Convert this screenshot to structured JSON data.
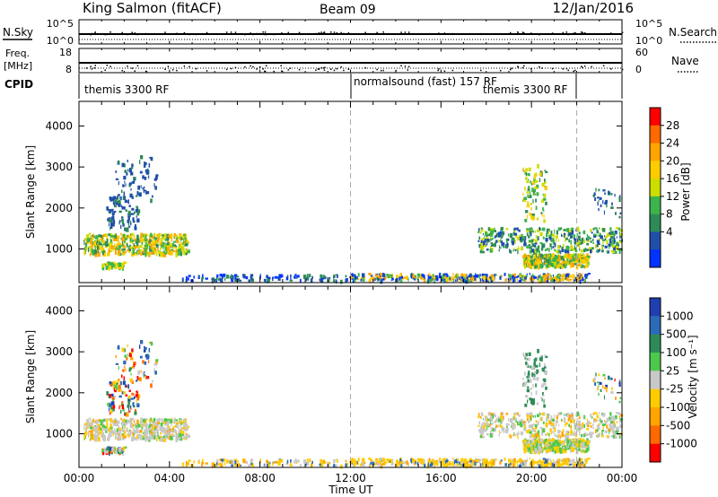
{
  "header": {
    "station": "King Salmon (fitACF)",
    "beam": "Beam 09",
    "date": "12/Jan/2016"
  },
  "aux_panels": {
    "nsky_label": "N.Sky",
    "nsky_ticks": [
      "10^5",
      "10^0"
    ],
    "nsearch_label": "N.Search",
    "nsearch_ticks": [
      "10^5",
      "10^0"
    ],
    "freq_label_1": "Freq.",
    "freq_label_2": "[MHz]",
    "freq_ticks": [
      "18",
      "8"
    ],
    "nave_label": "Nave",
    "nave_ticks": [
      "60",
      "0"
    ],
    "cpid_label": "CPID",
    "cpid_segments": [
      "themis 3300 RF",
      "normalsound (fast) 157 RF",
      "themis 3300 RF"
    ]
  },
  "x_axis": {
    "title": "Time UT",
    "tick_labels": [
      "00:00",
      "04:00",
      "08:00",
      "12:00",
      "16:00",
      "20:00",
      "00:00"
    ]
  },
  "chart_data": [
    {
      "type": "heatmap",
      "panel": "power",
      "ylabel": "Slant Range [km]",
      "y_ticks": [
        "4000",
        "3000",
        "2000",
        "1000"
      ],
      "xlim_hours": [
        0,
        24
      ],
      "ylim_km": [
        180,
        4600
      ],
      "colorbar_label": "Power [dB]",
      "colorbar_ticks": [
        "28",
        "24",
        "20",
        "16",
        "12",
        "8",
        "4"
      ],
      "colorbar_colors": [
        "#ff0000",
        "#ff6a00",
        "#ffa500",
        "#ffcc00",
        "#ccdd00",
        "#3cb44b",
        "#2e8b57",
        "#1f4fa8",
        "#0033ff"
      ],
      "dashed_lines_hours": [
        12,
        22
      ]
    },
    {
      "type": "heatmap",
      "panel": "velocity",
      "ylabel": "Slant Range [km]",
      "y_ticks": [
        "4000",
        "3000",
        "2000",
        "1000"
      ],
      "xlim_hours": [
        0,
        24
      ],
      "ylim_km": [
        180,
        4600
      ],
      "colorbar_label": "Velocity [m s⁻¹]",
      "colorbar_ticks": [
        "1000",
        "500",
        "100",
        "25",
        "-25",
        "-100",
        "-500",
        "-1000"
      ],
      "colorbar_colors": [
        "#1f3fb0",
        "#2a6ab8",
        "#2e8b57",
        "#4cc94c",
        "#c8c8c8",
        "#ffcc00",
        "#ffa500",
        "#ff6a00",
        "#ff0000"
      ],
      "dashed_lines_hours": [
        12,
        22
      ]
    }
  ]
}
